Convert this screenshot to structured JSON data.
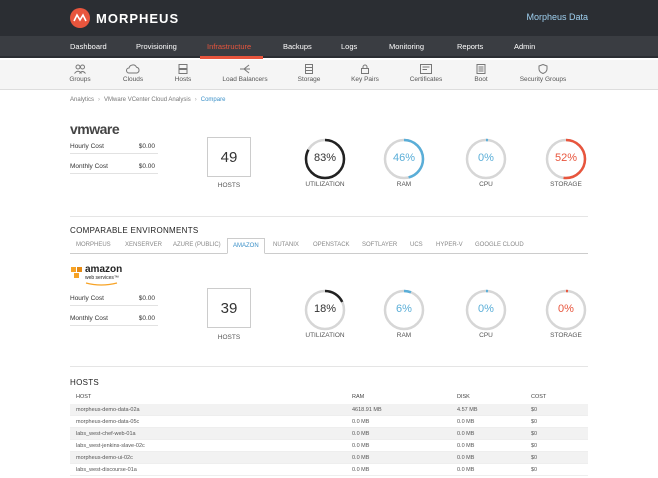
{
  "header": {
    "brand": "MORPHEUS",
    "account": "Morpheus Data"
  },
  "nav": {
    "items": [
      "Dashboard",
      "Provisioning",
      "Infrastructure",
      "Backups",
      "Logs",
      "Monitoring",
      "Reports",
      "Admin"
    ],
    "active": "Infrastructure"
  },
  "subnav": {
    "items": [
      {
        "label": "Groups",
        "icon": "groups-icon"
      },
      {
        "label": "Clouds",
        "icon": "cloud-icon"
      },
      {
        "label": "Hosts",
        "icon": "hosts-icon"
      },
      {
        "label": "Load Balancers",
        "icon": "load-balancer-icon"
      },
      {
        "label": "Storage",
        "icon": "storage-icon"
      },
      {
        "label": "Key Pairs",
        "icon": "lock-icon"
      },
      {
        "label": "Certificates",
        "icon": "certificate-icon"
      },
      {
        "label": "Boot",
        "icon": "boot-icon"
      },
      {
        "label": "Security Groups",
        "icon": "shield-icon"
      }
    ]
  },
  "breadcrumb": {
    "items": [
      "Analytics",
      "VMware VCenter Cloud Analysis",
      "Compare"
    ]
  },
  "current": {
    "logo": "vmware",
    "hourly_label": "Hourly Cost",
    "hourly": "$0.00",
    "monthly_label": "Monthly Cost",
    "monthly": "$0.00",
    "hosts": "49",
    "hosts_label": "HOSTS",
    "metrics": [
      {
        "label": "UTILIZATION",
        "value": "83%",
        "fraction": 0.83,
        "color": "#222222"
      },
      {
        "label": "RAM",
        "value": "46%",
        "fraction": 0.46,
        "color": "#5aaed8"
      },
      {
        "label": "CPU",
        "value": "0%",
        "fraction": 0,
        "color": "#5aaed8"
      },
      {
        "label": "STORAGE",
        "value": "52%",
        "fraction": 0.52,
        "color": "#e8553d"
      }
    ]
  },
  "comparable": {
    "title": "COMPARABLE ENVIRONMENTS",
    "tabs": [
      "MORPHEUS",
      "XENSERVER",
      "AZURE (PUBLIC)",
      "AMAZON",
      "NUTANIX",
      "OPENSTACK",
      "SOFTLAYER",
      "UCS",
      "HYPER-V",
      "GOOGLE CLOUD"
    ],
    "active_tab": "AMAZON",
    "logo_main": "amazon",
    "logo_sub": "web services",
    "logo_tm": "™",
    "hourly_label": "Hourly Cost",
    "hourly": "$0.00",
    "monthly_label": "Monthly Cost",
    "monthly": "$0.00",
    "hosts": "39",
    "hosts_label": "HOSTS",
    "metrics": [
      {
        "label": "UTILIZATION",
        "value": "18%",
        "fraction": 0.18,
        "color": "#222222"
      },
      {
        "label": "RAM",
        "value": "6%",
        "fraction": 0.06,
        "color": "#5aaed8"
      },
      {
        "label": "CPU",
        "value": "0%",
        "fraction": 0,
        "color": "#5aaed8"
      },
      {
        "label": "STORAGE",
        "value": "0%",
        "fraction": 0,
        "color": "#e8553d"
      }
    ]
  },
  "hosts_table": {
    "title": "HOSTS",
    "columns": [
      "HOST",
      "RAM",
      "DISK",
      "COST"
    ],
    "rows": [
      [
        "morpheus-demo-data-02a",
        "4618.91 MB",
        "4.57 MB",
        "$0"
      ],
      [
        "morpheus-demo-data-05c",
        "0.0 MB",
        "0.0 MB",
        "$0"
      ],
      [
        "labs_west-chef-web-01a",
        "0.0 MB",
        "0.0 MB",
        "$0"
      ],
      [
        "labs_west-jenkins-slave-02c",
        "0.0 MB",
        "0.0 MB",
        "$0"
      ],
      [
        "morpheus-demo-ui-02c",
        "0.0 MB",
        "0.0 MB",
        "$0"
      ],
      [
        "labs_west-discourse-01a",
        "0.0 MB",
        "0.0 MB",
        "$0"
      ]
    ]
  }
}
